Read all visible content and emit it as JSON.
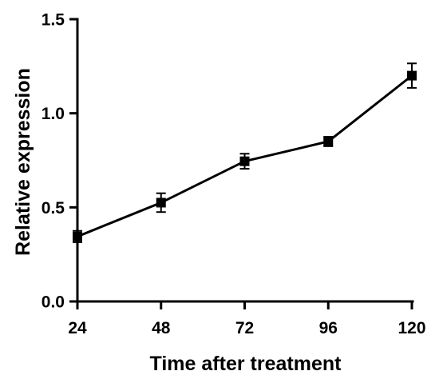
{
  "chart_data": {
    "type": "line",
    "x": [
      24,
      48,
      72,
      96,
      120
    ],
    "xticks": [
      "24",
      "48",
      "72",
      "96",
      "120"
    ],
    "yticks": [
      "0.0",
      "0.5",
      "1.0",
      "1.5"
    ],
    "ytick_values": [
      0,
      0.5,
      1.0,
      1.5
    ],
    "series": [
      {
        "values": [
          0.345,
          0.525,
          0.745,
          0.85,
          1.2
        ],
        "error": [
          0.03,
          0.05,
          0.04,
          0.025,
          0.065
        ],
        "color": "#000000",
        "marker": "square"
      }
    ],
    "xlabel": "Time after treatment",
    "ylabel": "Relative expression",
    "xlim": [
      24,
      120
    ],
    "ylim": [
      0,
      1.5
    ],
    "grid": false,
    "legend": "none"
  }
}
